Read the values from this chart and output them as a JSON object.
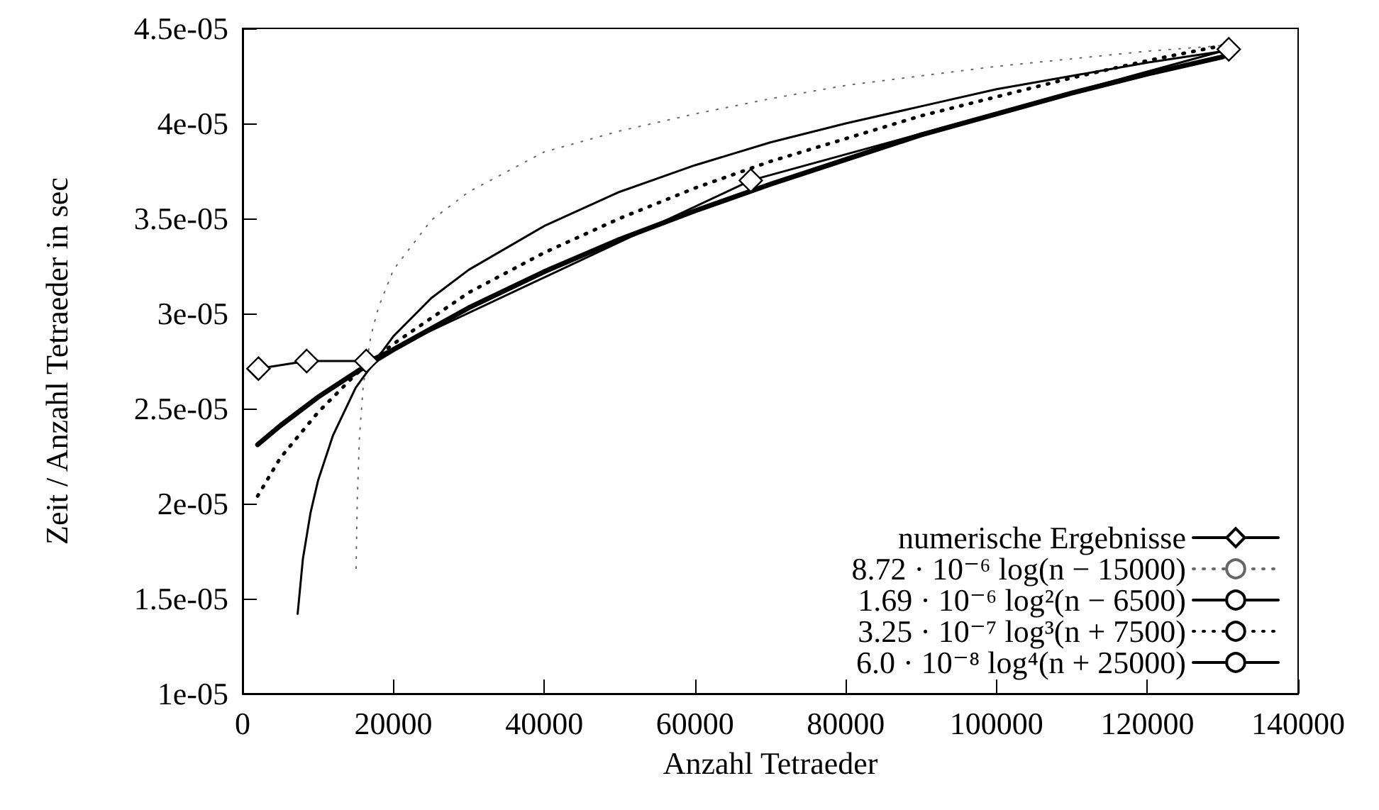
{
  "chart_data": {
    "type": "line",
    "xlabel": "Anzahl Tetraeder",
    "ylabel": "Zeit / Anzahl Tetraeder in sec",
    "xlim": [
      0,
      140000
    ],
    "xticks": [
      0,
      20000,
      40000,
      60000,
      80000,
      100000,
      120000,
      140000
    ],
    "ylim": [
      1e-05,
      4.5e-05
    ],
    "yticks": [
      {
        "value": 1e-05,
        "label": "1e-05"
      },
      {
        "value": 1.5e-05,
        "label": "1.5e-05"
      },
      {
        "value": 2e-05,
        "label": "2e-05"
      },
      {
        "value": 2.5e-05,
        "label": "2.5e-05"
      },
      {
        "value": 3e-05,
        "label": "3e-05"
      },
      {
        "value": 3.5e-05,
        "label": "3.5e-05"
      },
      {
        "value": 4e-05,
        "label": "4e-05"
      },
      {
        "value": 4.5e-05,
        "label": "4.5e-05"
      }
    ],
    "grid": false,
    "legend": "bottom right",
    "series": [
      {
        "name": "numerische Ergebnisse",
        "color": "#000000",
        "marker": "diamond",
        "line_style": "solid",
        "x": [
          2100,
          8500,
          16400,
          67400,
          130800
        ],
        "values": [
          2.71e-05,
          2.75e-05,
          2.75e-05,
          3.7e-05,
          4.39e-05
        ]
      },
      {
        "name": "8.72 · 10⁻⁶ log(n − 15000)",
        "color": "#666666",
        "marker": "none",
        "line_style": "dotted",
        "x": [
          15050,
          15200,
          15500,
          16000,
          17000,
          18000,
          20000,
          25000,
          30000,
          40000,
          50000,
          60000,
          70000,
          80000,
          90000,
          100000,
          110000,
          120000,
          130000
        ],
        "values": [
          1.66e-05,
          2.01e-05,
          2.35e-05,
          2.62e-05,
          2.88e-05,
          3.03e-05,
          3.23e-05,
          3.49e-05,
          3.64e-05,
          3.85e-05,
          3.96e-05,
          4.05e-05,
          4.13e-05,
          4.2e-05,
          4.25e-05,
          4.3e-05,
          4.34e-05,
          4.38e-05,
          4.41e-05
        ]
      },
      {
        "name": "1.69 · 10⁻⁶ log²(n − 6500)",
        "color": "#000000",
        "marker": "none",
        "line_style": "solid",
        "x": [
          7300,
          8000,
          9000,
          10000,
          12000,
          15000,
          20000,
          25000,
          30000,
          40000,
          50000,
          60000,
          70000,
          80000,
          90000,
          100000,
          110000,
          120000,
          130000
        ],
        "values": [
          1.42e-05,
          1.71e-05,
          1.95e-05,
          2.12e-05,
          2.36e-05,
          2.61e-05,
          2.88e-05,
          3.08e-05,
          3.23e-05,
          3.46e-05,
          3.64e-05,
          3.78e-05,
          3.9e-05,
          4e-05,
          4.09e-05,
          4.18e-05,
          4.25e-05,
          4.32e-05,
          4.38e-05
        ]
      },
      {
        "name": "3.25 · 10⁻⁷ log³(n + 7500)",
        "color": "#000000",
        "marker": "none",
        "line_style": "dotted",
        "x": [
          2000,
          5000,
          10000,
          15000,
          20000,
          30000,
          40000,
          50000,
          60000,
          70000,
          80000,
          90000,
          100000,
          110000,
          120000,
          130000
        ],
        "values": [
          2.04e-05,
          2.24e-05,
          2.48e-05,
          2.68e-05,
          2.84e-05,
          3.11e-05,
          3.32e-05,
          3.5e-05,
          3.66e-05,
          3.8e-05,
          3.92e-05,
          4.04e-05,
          4.14e-05,
          4.24e-05,
          4.33e-05,
          4.41e-05
        ]
      },
      {
        "name": "6.0 · 10⁻⁸ log⁴(n + 25000)",
        "color": "#000000",
        "marker": "none",
        "line_style": "solid",
        "x": [
          2000,
          5000,
          10000,
          15000,
          20000,
          30000,
          40000,
          50000,
          60000,
          70000,
          80000,
          90000,
          100000,
          110000,
          120000,
          130000
        ],
        "values": [
          2.31e-05,
          2.41e-05,
          2.56e-05,
          2.69e-05,
          2.81e-05,
          3.03e-05,
          3.22e-05,
          3.39e-05,
          3.54e-05,
          3.68e-05,
          3.81e-05,
          3.94e-05,
          4.05e-05,
          4.16e-05,
          4.26e-05,
          4.35e-05
        ]
      }
    ]
  }
}
